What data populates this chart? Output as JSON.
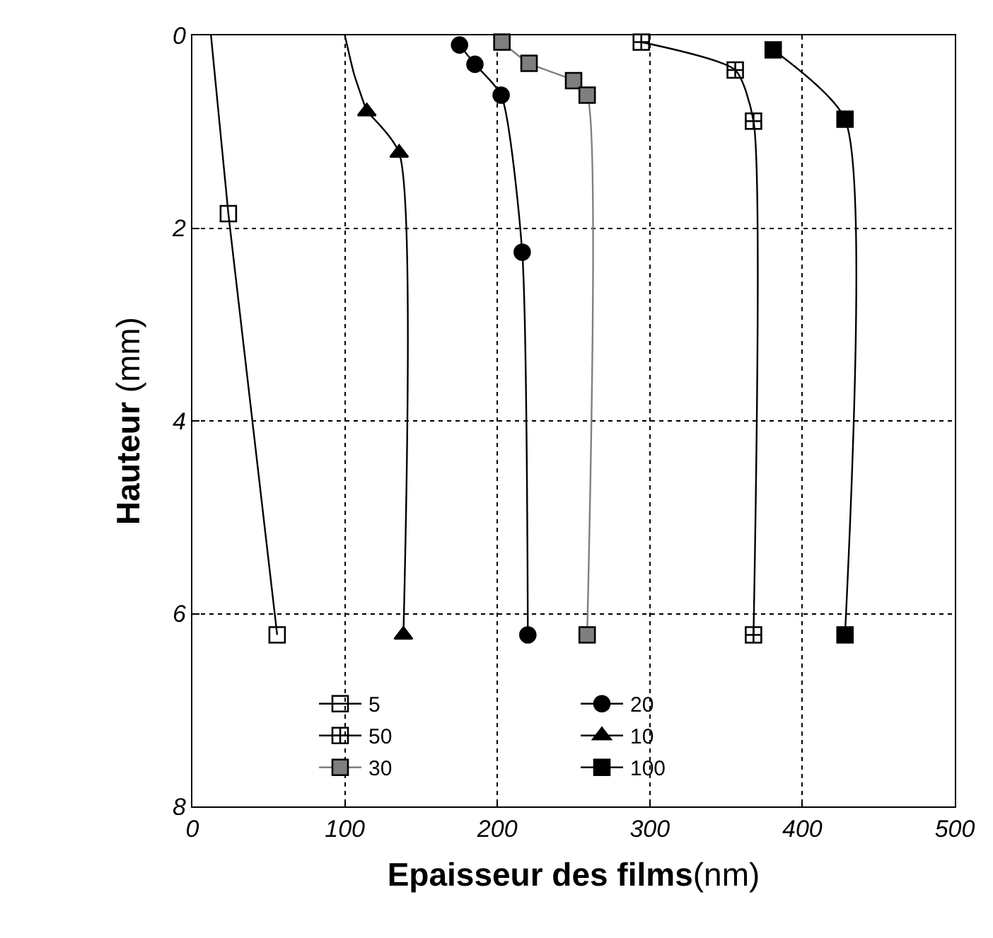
{
  "chart_data": {
    "type": "line",
    "xlabel": "Epaisseur des films(nm)",
    "ylabel": "Hauteur (mm)",
    "xlim": [
      0,
      500
    ],
    "xticks": [
      0,
      100,
      200,
      300,
      400,
      500
    ],
    "ylim": [
      8,
      0
    ],
    "yticks": [
      0,
      2,
      4,
      6,
      8
    ],
    "grid": true,
    "legend": "bottom",
    "line_style": "solid",
    "series": [
      {
        "name": "5",
        "color": "#000000",
        "marker": "square-open",
        "x": [
          23.6,
          55.6
        ],
        "values": [
          1.85,
          6.22
        ]
      },
      {
        "name": "10",
        "color": "#000000",
        "marker": "triangle",
        "x": [
          114.4,
          135.6,
          138.4
        ],
        "values": [
          0.79,
          1.22,
          6.22
        ]
      },
      {
        "name": "20",
        "color": "#000000",
        "marker": "circle",
        "x": [
          175.2,
          185.3,
          202.5,
          216.3,
          220
        ],
        "values": [
          0.1,
          0.3,
          0.62,
          2.25,
          6.22
        ]
      },
      {
        "name": "30",
        "color": "#7f7f7f",
        "marker": "square",
        "x": [
          203,
          220.8,
          250,
          258.9,
          258.9
        ],
        "values": [
          0.07,
          0.29,
          0.47,
          0.62,
          6.22
        ]
      },
      {
        "name": "50",
        "color": "#000000",
        "marker": "cross",
        "x": [
          294.4,
          356,
          368,
          368
        ],
        "values": [
          0.07,
          0.36,
          0.89,
          6.22
        ]
      },
      {
        "name": "100",
        "color": "#000000",
        "marker": "square",
        "x": [
          380.9,
          428,
          428
        ],
        "values": [
          0.15,
          0.87,
          6.22
        ]
      },
      {
        "type": "line",
        "color": "#000000",
        "marker": "none",
        "x": [
          12.2,
          23.6
        ],
        "values": [
          0,
          1.85
        ]
      },
      {
        "type": "line",
        "color": "#000000",
        "marker": "none",
        "x": [
          100,
          106,
          114.4
        ],
        "values": [
          0,
          0.4,
          0.79
        ]
      }
    ]
  }
}
